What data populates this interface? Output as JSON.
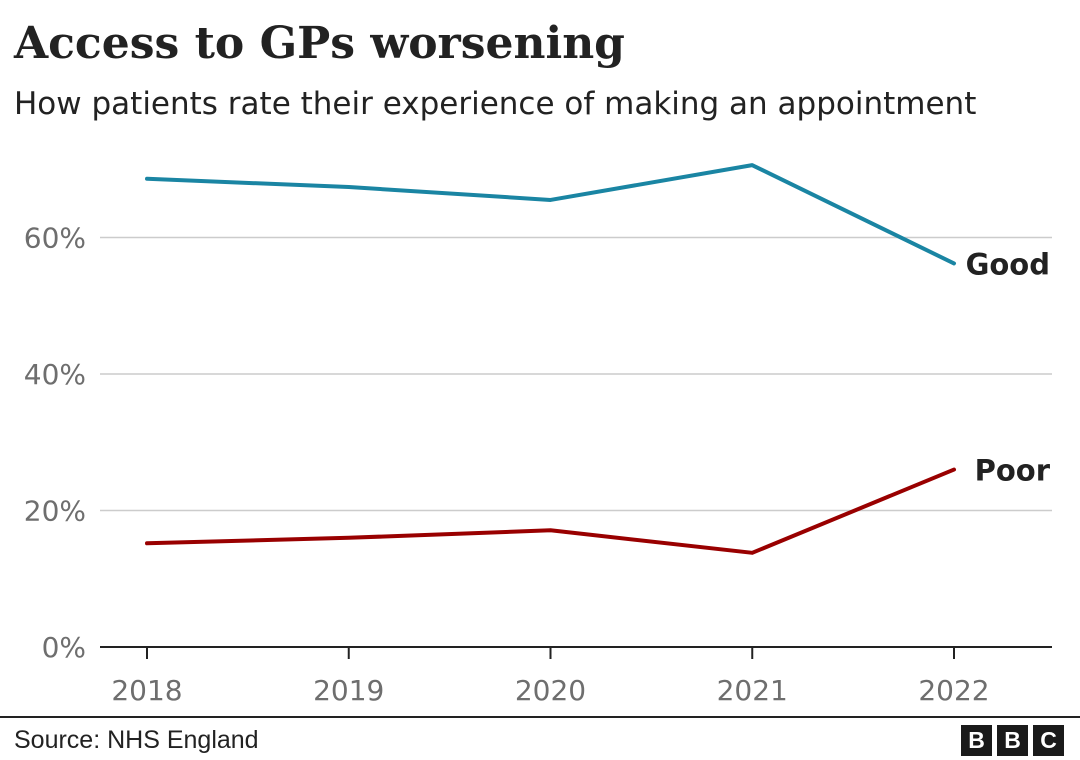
{
  "header": {
    "title": "Access to GPs worsening",
    "subtitle": "How patients rate their experience of making an appointment"
  },
  "footer": {
    "source": "Source: NHS England",
    "logo_letters": [
      "B",
      "B",
      "C"
    ]
  },
  "chart_data": {
    "type": "line",
    "x": [
      "2018",
      "2019",
      "2020",
      "2021",
      "2022"
    ],
    "yticks": [
      "0%",
      "20%",
      "40%",
      "60%"
    ],
    "ylim": [
      0,
      72
    ],
    "grid": true,
    "series": [
      {
        "name": "Good",
        "color": "#1a85a3",
        "values": [
          68.6,
          67.4,
          65.5,
          70.6,
          56.2
        ]
      },
      {
        "name": "Poor",
        "color": "#990000",
        "values": [
          15.2,
          16.0,
          17.1,
          13.8,
          26.0
        ]
      }
    ]
  }
}
